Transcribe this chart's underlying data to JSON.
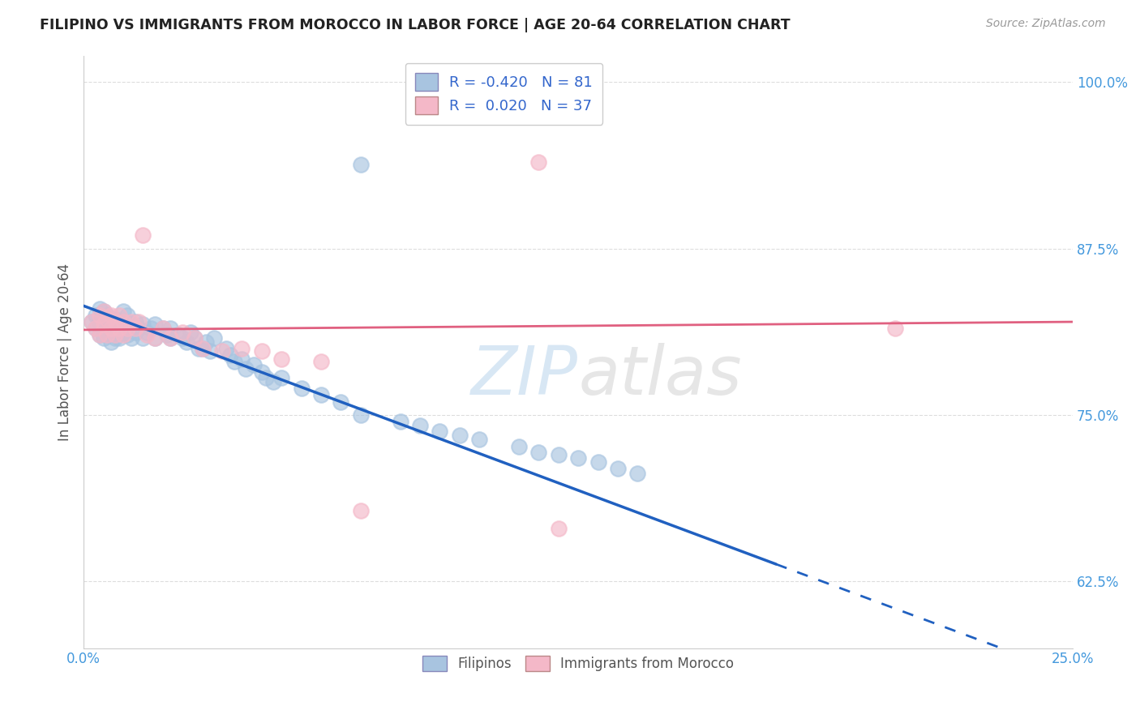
{
  "title": "FILIPINO VS IMMIGRANTS FROM MOROCCO IN LABOR FORCE | AGE 20-64 CORRELATION CHART",
  "source": "Source: ZipAtlas.com",
  "ylabel": "In Labor Force | Age 20-64",
  "xlim": [
    0.0,
    0.25
  ],
  "ylim": [
    0.575,
    1.02
  ],
  "xticks": [
    0.0,
    0.05,
    0.1,
    0.15,
    0.2,
    0.25
  ],
  "xticklabels": [
    "0.0%",
    "",
    "",
    "",
    "",
    "25.0%"
  ],
  "yticks": [
    0.625,
    0.75,
    0.875,
    1.0
  ],
  "yticklabels": [
    "62.5%",
    "75.0%",
    "87.5%",
    "100.0%"
  ],
  "filipino_R": -0.42,
  "filipino_N": 81,
  "morocco_R": 0.02,
  "morocco_N": 37,
  "legend_labels": [
    "Filipinos",
    "Immigrants from Morocco"
  ],
  "filipino_color": "#a8c4e0",
  "morocco_color": "#f4b8c8",
  "trend_filipino_color": "#2060c0",
  "trend_morocco_color": "#e06080",
  "watermark_zip": "ZIP",
  "watermark_atlas": "atlas",
  "trend_filipino_x0": 0.0,
  "trend_filipino_y0": 0.832,
  "trend_filipino_x1": 0.175,
  "trend_filipino_y1": 0.638,
  "trend_filipino_solid_end": 0.175,
  "trend_morocco_x0": 0.0,
  "trend_morocco_y0": 0.814,
  "trend_morocco_x1": 0.25,
  "trend_morocco_y1": 0.82,
  "filipino_scatter_x": [
    0.002,
    0.003,
    0.003,
    0.004,
    0.004,
    0.004,
    0.005,
    0.005,
    0.005,
    0.005,
    0.006,
    0.006,
    0.006,
    0.007,
    0.007,
    0.007,
    0.008,
    0.008,
    0.008,
    0.008,
    0.009,
    0.009,
    0.009,
    0.01,
    0.01,
    0.01,
    0.011,
    0.011,
    0.011,
    0.012,
    0.012,
    0.013,
    0.013,
    0.014,
    0.015,
    0.015,
    0.016,
    0.017,
    0.018,
    0.018,
    0.02,
    0.021,
    0.022,
    0.022,
    0.024,
    0.025,
    0.026,
    0.027,
    0.028,
    0.029,
    0.03,
    0.031,
    0.032,
    0.033,
    0.036,
    0.037,
    0.038,
    0.04,
    0.041,
    0.043,
    0.045,
    0.046,
    0.048,
    0.05,
    0.055,
    0.06,
    0.065,
    0.07,
    0.07,
    0.08,
    0.085,
    0.09,
    0.095,
    0.1,
    0.11,
    0.115,
    0.12,
    0.125,
    0.13,
    0.135,
    0.14
  ],
  "filipino_scatter_y": [
    0.82,
    0.815,
    0.825,
    0.81,
    0.82,
    0.83,
    0.808,
    0.815,
    0.822,
    0.828,
    0.81,
    0.818,
    0.825,
    0.805,
    0.815,
    0.822,
    0.808,
    0.815,
    0.822,
    0.81,
    0.815,
    0.808,
    0.82,
    0.812,
    0.82,
    0.828,
    0.81,
    0.815,
    0.825,
    0.808,
    0.818,
    0.812,
    0.82,
    0.815,
    0.808,
    0.818,
    0.812,
    0.815,
    0.808,
    0.818,
    0.815,
    0.81,
    0.808,
    0.815,
    0.81,
    0.808,
    0.805,
    0.812,
    0.808,
    0.8,
    0.8,
    0.805,
    0.798,
    0.808,
    0.8,
    0.795,
    0.79,
    0.792,
    0.785,
    0.788,
    0.782,
    0.778,
    0.775,
    0.778,
    0.77,
    0.765,
    0.76,
    0.938,
    0.75,
    0.745,
    0.742,
    0.738,
    0.735,
    0.732,
    0.726,
    0.722,
    0.72,
    0.718,
    0.715,
    0.71,
    0.706
  ],
  "morocco_scatter_x": [
    0.002,
    0.003,
    0.004,
    0.004,
    0.005,
    0.005,
    0.006,
    0.006,
    0.007,
    0.007,
    0.008,
    0.008,
    0.009,
    0.009,
    0.01,
    0.01,
    0.011,
    0.012,
    0.013,
    0.014,
    0.015,
    0.016,
    0.018,
    0.02,
    0.022,
    0.025,
    0.028,
    0.03,
    0.035,
    0.04,
    0.045,
    0.05,
    0.06,
    0.07,
    0.115,
    0.205,
    0.12
  ],
  "morocco_scatter_y": [
    0.82,
    0.815,
    0.825,
    0.81,
    0.818,
    0.828,
    0.81,
    0.822,
    0.815,
    0.825,
    0.81,
    0.82,
    0.815,
    0.825,
    0.81,
    0.82,
    0.815,
    0.82,
    0.815,
    0.82,
    0.885,
    0.81,
    0.808,
    0.815,
    0.808,
    0.812,
    0.808,
    0.8,
    0.798,
    0.8,
    0.798,
    0.792,
    0.79,
    0.678,
    0.94,
    0.815,
    0.665
  ]
}
